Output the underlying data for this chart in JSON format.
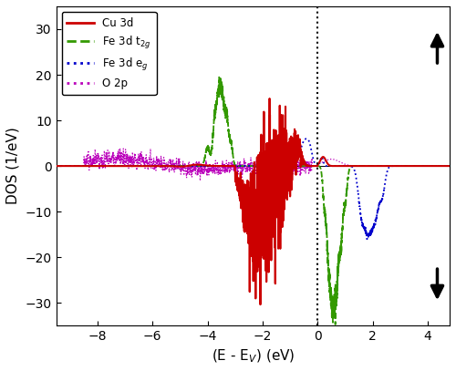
{
  "xlabel": "(E - E$_V$) (eV)",
  "ylabel": "DOS (1/eV)",
  "xlim": [
    -9.5,
    4.8
  ],
  "ylim": [
    -35,
    35
  ],
  "xticks": [
    -8,
    -6,
    -4,
    -2,
    0,
    2,
    4
  ],
  "yticks": [
    -30,
    -20,
    -10,
    0,
    10,
    20,
    30
  ],
  "vline_x": 0.0,
  "legend_labels": [
    "Cu 3d",
    "Fe 3d t$_{2g}$",
    "Fe 3d e$_g$",
    "O 2p"
  ],
  "legend_colors": [
    "#cc0000",
    "#339900",
    "#0000cc",
    "#bb00bb"
  ],
  "background_color": "#ffffff"
}
